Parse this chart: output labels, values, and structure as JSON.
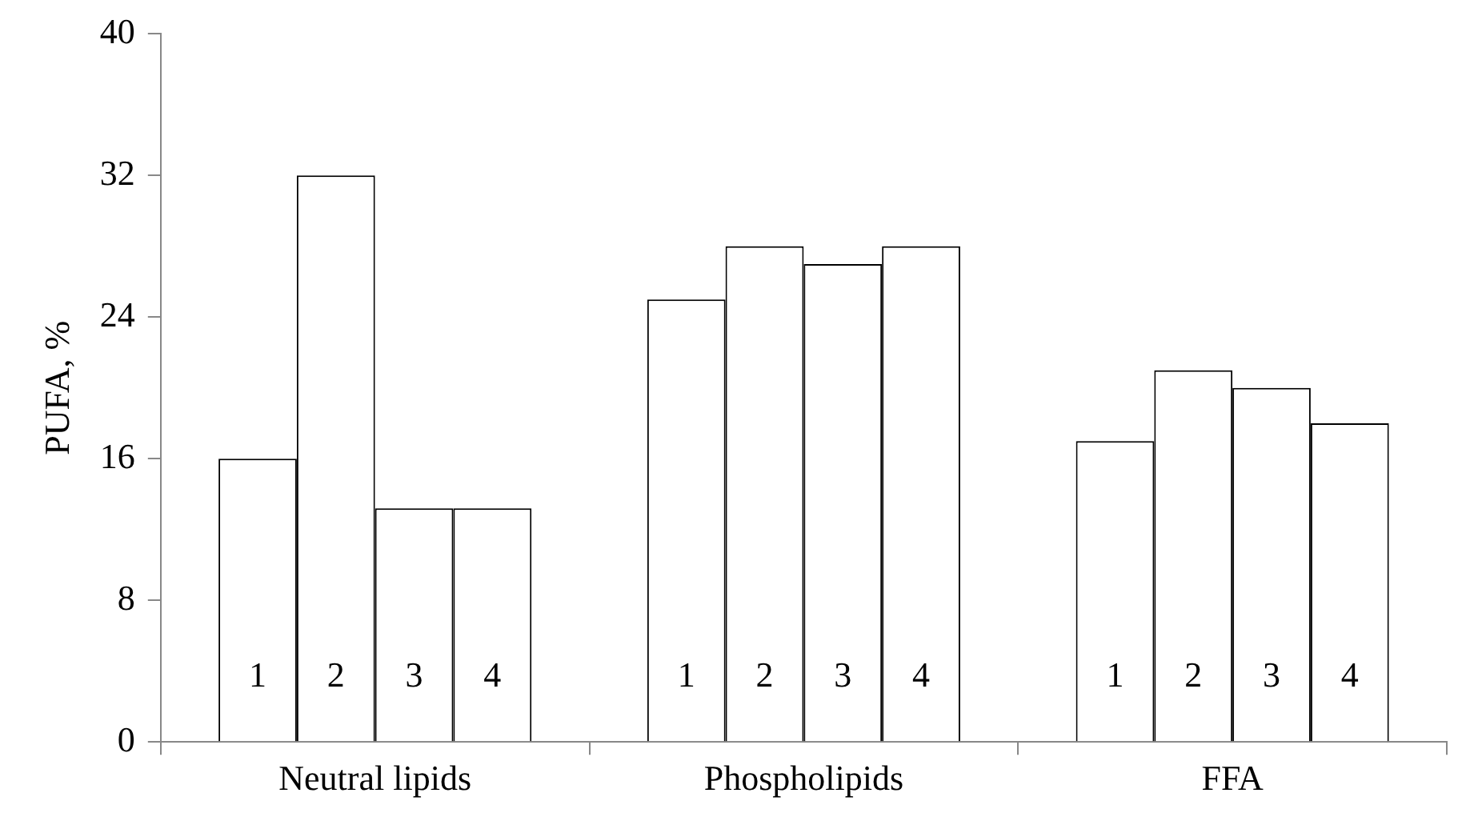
{
  "chart_data": {
    "type": "bar",
    "ylabel": "PUFA, %",
    "categories": [
      "Neutral lipids",
      "Phospholipids",
      "FFA"
    ],
    "series": [
      {
        "name": "1",
        "color": "#ffffff",
        "values": [
          16,
          25,
          17
        ]
      },
      {
        "name": "2",
        "color": "#ffffff",
        "values": [
          32,
          28,
          21
        ]
      },
      {
        "name": "3",
        "color": "#ffffff",
        "values": [
          13.2,
          27,
          20
        ]
      },
      {
        "name": "4",
        "color": "#ffffff",
        "values": [
          13.2,
          28,
          18
        ]
      }
    ],
    "ylim": [
      0,
      40
    ],
    "yticks": [
      0,
      8,
      16,
      24,
      32,
      40
    ],
    "grid": false,
    "legend": false
  }
}
